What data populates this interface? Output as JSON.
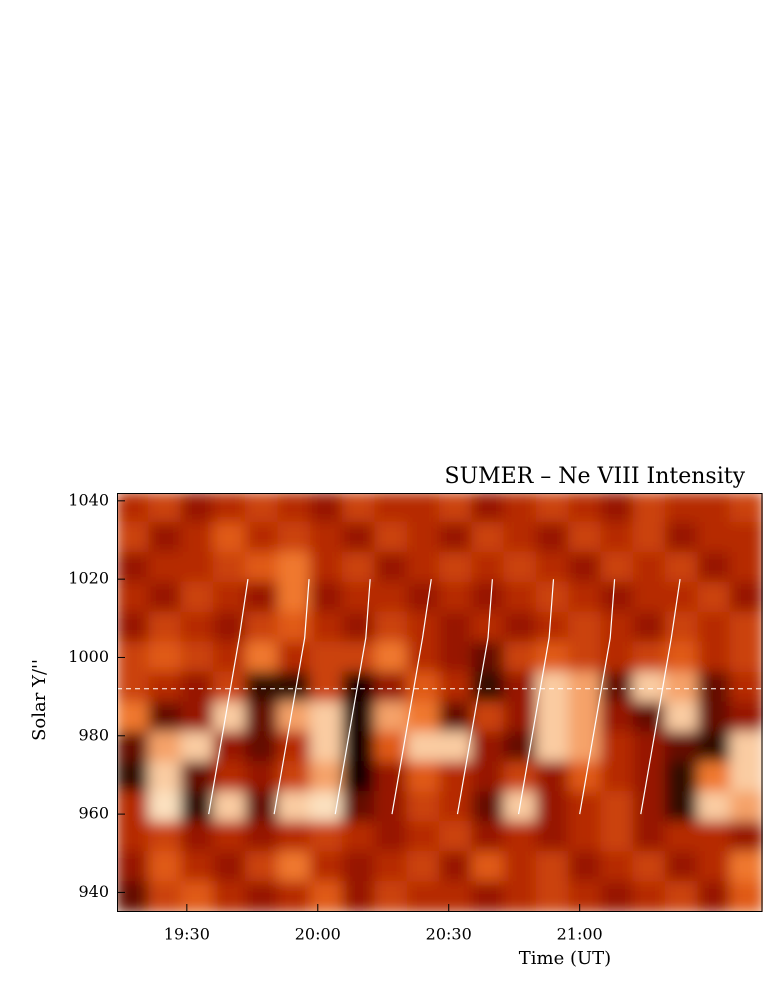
{
  "chart_data": {
    "type": "heatmap",
    "title": "SUMER – Ne VIII Intensity",
    "x_label": "Time (UT)",
    "y_label": "Solar Y/''",
    "xlim": [
      1154,
      1302
    ],
    "xticks": [
      {
        "value": 1170,
        "label": "19:30"
      },
      {
        "value": 1200,
        "label": "20:00"
      },
      {
        "value": 1230,
        "label": "20:30"
      },
      {
        "value": 1260,
        "label": "21:00"
      }
    ],
    "ylim": [
      935,
      1042
    ],
    "yticks": [
      940,
      960,
      980,
      1000,
      1020,
      1040
    ],
    "zlim": [
      0,
      1
    ],
    "colormap": [
      "#000000",
      "#a81c00",
      "#ee6a1c",
      "#fff6dc"
    ],
    "z": [
      [
        0.4,
        0.5,
        0.3,
        0.4,
        0.5,
        0.4,
        0.3,
        0.5,
        0.4,
        0.4,
        0.5,
        0.3,
        0.4,
        0.5,
        0.4,
        0.3,
        0.5,
        0.4,
        0.4,
        0.5
      ],
      [
        0.5,
        0.3,
        0.4,
        0.6,
        0.4,
        0.5,
        0.4,
        0.3,
        0.5,
        0.4,
        0.3,
        0.5,
        0.4,
        0.3,
        0.5,
        0.4,
        0.5,
        0.3,
        0.4,
        0.4
      ],
      [
        0.3,
        0.4,
        0.4,
        0.5,
        0.6,
        0.7,
        0.4,
        0.5,
        0.3,
        0.4,
        0.5,
        0.4,
        0.5,
        0.4,
        0.3,
        0.5,
        0.4,
        0.5,
        0.3,
        0.4
      ],
      [
        0.4,
        0.3,
        0.5,
        0.4,
        0.3,
        0.7,
        0.3,
        0.4,
        0.4,
        0.3,
        0.4,
        0.3,
        0.4,
        0.5,
        0.4,
        0.3,
        0.4,
        0.4,
        0.5,
        0.3
      ],
      [
        0.3,
        0.5,
        0.4,
        0.3,
        0.5,
        0.6,
        0.4,
        0.3,
        0.5,
        0.4,
        0.3,
        0.4,
        0.3,
        0.4,
        0.5,
        0.4,
        0.3,
        0.5,
        0.4,
        0.5
      ],
      [
        0.5,
        0.6,
        0.5,
        0.4,
        0.7,
        0.4,
        0.5,
        0.5,
        0.7,
        0.4,
        0.3,
        0.2,
        0.5,
        0.6,
        0.5,
        0.4,
        0.5,
        0.6,
        0.4,
        0.5
      ],
      [
        0.5,
        0.4,
        0.3,
        0.5,
        0.1,
        0.1,
        0.5,
        0.05,
        0.3,
        0.6,
        0.4,
        0.1,
        0.3,
        0.9,
        0.8,
        0.2,
        0.9,
        0.8,
        0.2,
        0.4
      ],
      [
        0.7,
        0.2,
        0.3,
        0.9,
        0.2,
        0.8,
        0.9,
        0.05,
        0.8,
        0.7,
        0.2,
        0.5,
        0.3,
        0.9,
        0.8,
        0.3,
        0.2,
        0.9,
        0.2,
        0.3
      ],
      [
        0.2,
        0.8,
        0.9,
        0.3,
        0.2,
        0.4,
        0.9,
        0.05,
        0.6,
        0.9,
        0.9,
        0.3,
        0.2,
        0.9,
        0.8,
        0.4,
        0.3,
        0.2,
        0.1,
        0.9
      ],
      [
        0.1,
        0.9,
        0.2,
        0.4,
        0.3,
        0.5,
        0.8,
        0.05,
        0.3,
        0.6,
        0.4,
        0.3,
        0.5,
        0.3,
        0.6,
        0.4,
        0.3,
        0.1,
        0.7,
        0.9
      ],
      [
        0.4,
        0.95,
        0.1,
        0.9,
        0.2,
        0.9,
        0.95,
        0.2,
        0.3,
        0.5,
        0.4,
        0.2,
        0.9,
        0.3,
        0.4,
        0.5,
        0.3,
        0.1,
        0.9,
        0.8
      ],
      [
        0.4,
        0.5,
        0.3,
        0.4,
        0.3,
        0.4,
        0.5,
        0.4,
        0.3,
        0.4,
        0.5,
        0.3,
        0.4,
        0.3,
        0.4,
        0.5,
        0.3,
        0.4,
        0.4,
        0.3
      ],
      [
        0.3,
        0.6,
        0.4,
        0.3,
        0.5,
        0.7,
        0.4,
        0.3,
        0.4,
        0.5,
        0.3,
        0.6,
        0.4,
        0.5,
        0.3,
        0.4,
        0.5,
        0.3,
        0.4,
        0.7
      ],
      [
        0.2,
        0.5,
        0.6,
        0.4,
        0.3,
        0.4,
        0.6,
        0.3,
        0.5,
        0.4,
        0.4,
        0.3,
        0.4,
        0.5,
        0.4,
        0.3,
        0.4,
        0.5,
        0.3,
        0.6
      ]
    ],
    "fit_lines": [
      {
        "x": [
          1175,
          1182,
          1184
        ],
        "y": [
          960,
          1005,
          1020
        ]
      },
      {
        "x": [
          1190,
          1197,
          1198
        ],
        "y": [
          960,
          1005,
          1020
        ]
      },
      {
        "x": [
          1204,
          1211,
          1212
        ],
        "y": [
          960,
          1005,
          1020
        ]
      },
      {
        "x": [
          1217,
          1224,
          1226
        ],
        "y": [
          960,
          1005,
          1020
        ]
      },
      {
        "x": [
          1232,
          1239,
          1240
        ],
        "y": [
          960,
          1005,
          1020
        ]
      },
      {
        "x": [
          1246,
          1253,
          1254
        ],
        "y": [
          960,
          1005,
          1020
        ]
      },
      {
        "x": [
          1260,
          1267,
          1268
        ],
        "y": [
          960,
          1005,
          1020
        ]
      },
      {
        "x": [
          1274,
          1281,
          1283
        ],
        "y": [
          960,
          1005,
          1020
        ]
      }
    ],
    "fit_line_color": "#ffffff",
    "hline": 992
  }
}
